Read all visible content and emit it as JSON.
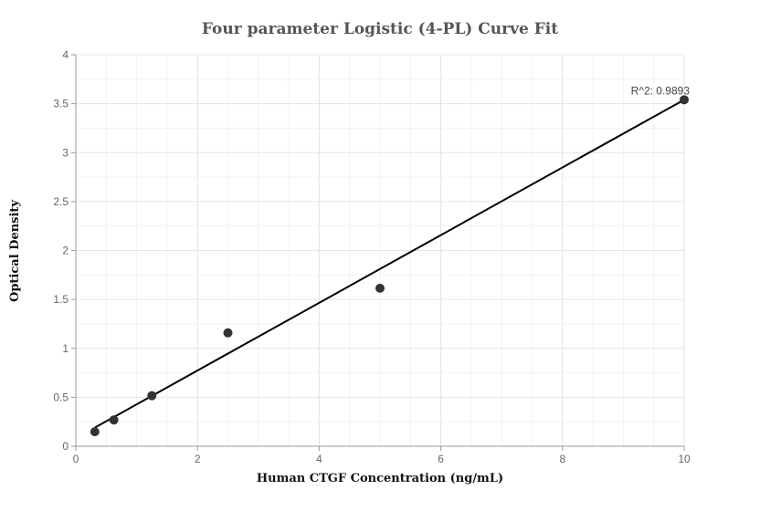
{
  "chart_data": {
    "type": "scatter",
    "title": "Four parameter Logistic (4-PL) Curve Fit",
    "xlabel": "Human CTGF Concentration (ng/mL)",
    "ylabel": "Optical Density",
    "xlim": [
      0,
      10
    ],
    "ylim": [
      0,
      4
    ],
    "x_ticks": [
      "0",
      "2",
      "4",
      "6",
      "8",
      "10"
    ],
    "y_ticks": [
      "0",
      "0.5",
      "1",
      "1.5",
      "2",
      "2.5",
      "3",
      "3.5",
      "4"
    ],
    "grid": true,
    "points": [
      {
        "x": 0.3125,
        "y": 0.148
      },
      {
        "x": 0.625,
        "y": 0.268
      },
      {
        "x": 1.25,
        "y": 0.516
      },
      {
        "x": 2.5,
        "y": 1.158
      },
      {
        "x": 5,
        "y": 1.614
      },
      {
        "x": 10,
        "y": 3.54
      }
    ],
    "fit_line": [
      {
        "x": 0.3125,
        "y": 0.19
      },
      {
        "x": 10,
        "y": 3.54
      }
    ],
    "annotation": "R^2: 0.9893",
    "colors": {
      "points": "#333333",
      "line": "#000000",
      "grid": "#e6e6e6"
    }
  }
}
